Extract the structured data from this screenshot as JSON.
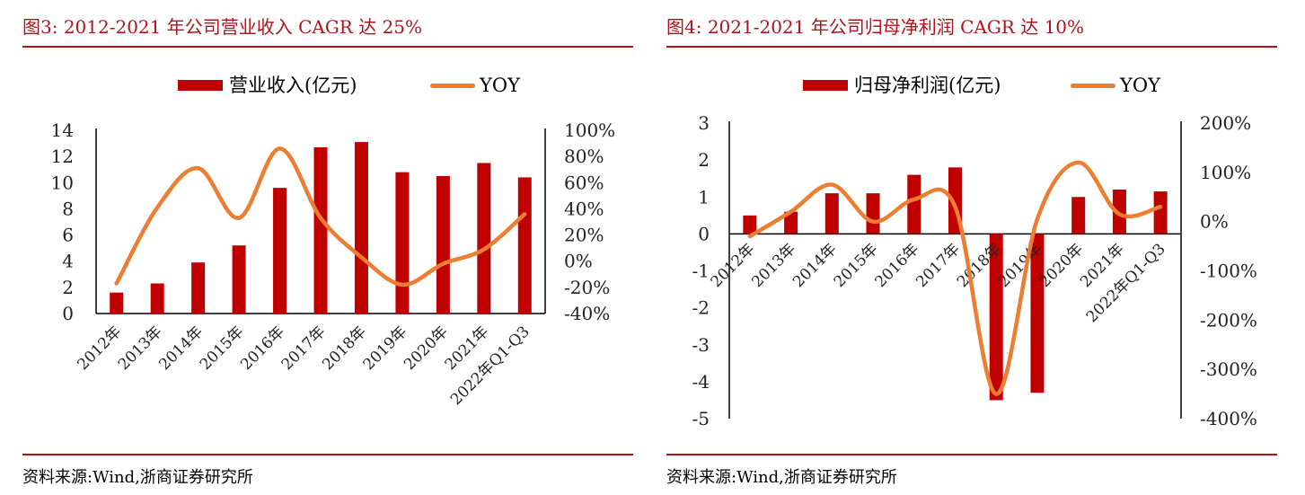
{
  "figures": [
    {
      "title": "图3:   2012-2021 年公司营业收入 CAGR 达 25%",
      "source": "资料来源:Wind,浙商证券研究所",
      "legend": {
        "bar_label": "营业收入(亿元)",
        "line_label": "YOY"
      }
    },
    {
      "title": "图4:   2021-2021 年公司归母净利润 CAGR 达 10%",
      "source": "资料来源:Wind,浙商证券研究所",
      "legend": {
        "bar_label": "归母净利润(亿元)",
        "line_label": "YOY"
      }
    }
  ],
  "colors": {
    "bar": "#c00000",
    "line": "#ed7d31",
    "title": "#b3121b",
    "axis": "#000000"
  },
  "chart_data": [
    {
      "type": "bar",
      "categories": [
        "2012年",
        "2013年",
        "2014年",
        "2015年",
        "2016年",
        "2017年",
        "2018年",
        "2019年",
        "2020年",
        "2021年",
        "2022年Q1-Q3"
      ],
      "series": [
        {
          "name": "营业收入(亿元)",
          "type": "bar",
          "axis": "left",
          "values": [
            1.6,
            2.3,
            3.9,
            5.2,
            9.6,
            12.7,
            13.1,
            10.8,
            10.5,
            11.5,
            10.4
          ]
        },
        {
          "name": "YOY",
          "type": "line",
          "axis": "right",
          "values": [
            -17,
            41,
            71,
            33,
            86,
            33,
            3,
            -18,
            -2,
            9,
            36
          ]
        }
      ],
      "ylim_left": [
        0,
        14
      ],
      "yticks_left": [
        "0",
        "2",
        "4",
        "6",
        "8",
        "10",
        "12",
        "14"
      ],
      "ylim_right": [
        -40,
        100
      ],
      "yticks_right": [
        "-40%",
        "-20%",
        "0%",
        "20%",
        "40%",
        "60%",
        "80%",
        "100%"
      ],
      "grid": false,
      "legend_position": "top"
    },
    {
      "type": "bar",
      "categories": [
        "2012年",
        "2013年",
        "2014年",
        "2015年",
        "2016年",
        "2017年",
        "2018年",
        "2019年",
        "2020年",
        "2021年",
        "2022年Q1-Q3"
      ],
      "series": [
        {
          "name": "归母净利润(亿元)",
          "type": "bar",
          "axis": "left",
          "values": [
            0.5,
            0.6,
            1.1,
            1.1,
            1.6,
            1.8,
            -4.5,
            -4.3,
            1.0,
            1.2,
            1.15
          ]
        },
        {
          "name": "YOY",
          "type": "line",
          "axis": "right",
          "values": [
            -30,
            20,
            75,
            0,
            45,
            30,
            -350,
            5,
            120,
            15,
            30
          ]
        }
      ],
      "ylim_left": [
        -5,
        3
      ],
      "yticks_left": [
        "-5",
        "-4",
        "-3",
        "-2",
        "-1",
        "0",
        "1",
        "2",
        "3"
      ],
      "ylim_right": [
        -400,
        200
      ],
      "yticks_right": [
        "-400%",
        "-300%",
        "-200%",
        "-100%",
        "0%",
        "100%",
        "200%"
      ],
      "grid": false,
      "legend_position": "top"
    }
  ]
}
